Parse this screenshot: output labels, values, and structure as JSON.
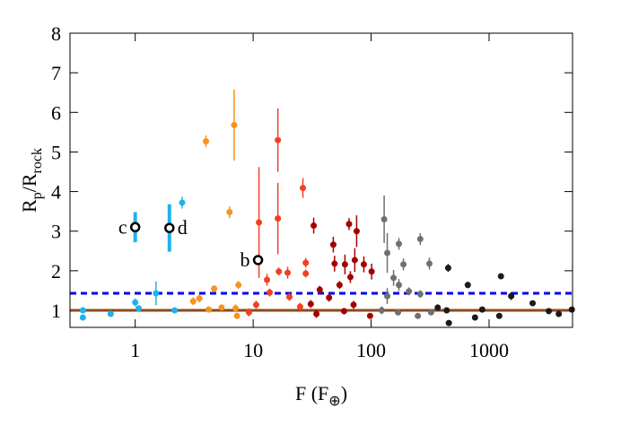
{
  "chart_data": {
    "type": "scatter",
    "x_label_parts": [
      "F (F",
      "⊕",
      ")"
    ],
    "y_label_parts": [
      "R",
      "p",
      "/R",
      "rock"
    ],
    "xscale": "log",
    "xlim": [
      0.28,
      5100
    ],
    "ylim": [
      0.57,
      8
    ],
    "xticks": [
      1,
      10,
      100,
      1000
    ],
    "yticks": [
      1,
      2,
      3,
      4,
      5,
      6,
      7,
      8
    ],
    "hlines": [
      {
        "value": 1.43,
        "color": "#0000ee",
        "style": "dashed"
      },
      {
        "value": 1.0,
        "color": "#8b4a1c",
        "style": "solid"
      }
    ],
    "series": [
      {
        "color": "#1fb2ea",
        "x": [
          0.36,
          0.36,
          0.62,
          1.0,
          1.07,
          1.5,
          2.16,
          2.5
        ],
        "values": [
          1.0,
          0.82,
          0.91,
          1.2,
          1.05,
          1.43,
          1.0,
          3.72
        ],
        "yerr": [
          0.06,
          0.05,
          0.04,
          0.1,
          0.05,
          0.3,
          0.05,
          0.15
        ]
      },
      {
        "color": "#f7941d",
        "x": [
          3.98,
          6.9,
          6.3,
          3.1,
          3.5,
          4.67,
          7.5,
          7.1,
          7.3,
          4.2,
          5.4
        ],
        "values": [
          5.27,
          5.68,
          3.48,
          1.23,
          1.3,
          1.55,
          1.64,
          1.05,
          0.86,
          1.02,
          1.07
        ],
        "yerr": [
          0.15,
          0.9,
          0.15,
          0.1,
          0.1,
          0.05,
          0.1,
          0.1,
          0.08,
          0.05,
          0.05
        ]
      },
      {
        "color": "#ef4123",
        "x": [
          16.2,
          16.2,
          26.4,
          11.2,
          13.1,
          16.5,
          19.6,
          27.9,
          27.9,
          13.8,
          20.3,
          25,
          10.6,
          9.2
        ],
        "values": [
          5.3,
          3.32,
          4.09,
          3.22,
          1.77,
          1.98,
          1.95,
          2.2,
          1.93,
          1.45,
          1.34,
          1.09,
          1.14,
          0.95
        ],
        "yerr": [
          0.8,
          0.9,
          0.25,
          1.4,
          0.15,
          0.1,
          0.15,
          0.12,
          0.1,
          0.1,
          0.1,
          0.1,
          0.1,
          0.1
        ]
      },
      {
        "color": "#a50000",
        "x": [
          32.6,
          65,
          75.4,
          47.8,
          49,
          60,
          72.7,
          86.8,
          101,
          66.7,
          54,
          36.7,
          44,
          30.8,
          71,
          98,
          34.4,
          59
        ],
        "values": [
          3.14,
          3.18,
          3.0,
          2.66,
          2.18,
          2.16,
          2.27,
          2.16,
          1.98,
          1.84,
          1.64,
          1.52,
          1.32,
          1.16,
          1.14,
          0.86,
          0.91,
          0.98
        ],
        "yerr": [
          0.2,
          0.15,
          0.4,
          0.2,
          0.2,
          0.25,
          0.3,
          0.2,
          0.2,
          0.15,
          0.1,
          0.1,
          0.1,
          0.1,
          0.1,
          0.05,
          0.1,
          0.08
        ]
      },
      {
        "color": "#707070",
        "x": [
          129,
          137,
          261,
          188,
          312,
          172,
          155,
          172,
          209,
          261,
          137,
          123,
          169,
          249,
          322
        ],
        "values": [
          3.3,
          2.45,
          2.8,
          2.16,
          2.18,
          2.68,
          1.82,
          1.64,
          1.48,
          1.41,
          1.36,
          1.0,
          0.95,
          0.86,
          0.95
        ],
        "yerr": [
          0.6,
          0.5,
          0.15,
          0.15,
          0.15,
          0.15,
          0.2,
          0.15,
          0.1,
          0.1,
          0.2,
          0.1,
          0.08,
          0.05,
          0.05
        ]
      },
      {
        "color": "#1a1a1a",
        "x": [
          450,
          660,
          1260,
          367,
          437,
          456,
          875,
          1540,
          2340,
          3210,
          3900,
          5030,
          1220,
          760
        ],
        "values": [
          2.07,
          1.64,
          1.86,
          1.07,
          1.0,
          0.68,
          1.02,
          1.36,
          1.18,
          0.98,
          0.91,
          1.02,
          0.86,
          0.82
        ],
        "yerr": [
          0.1,
          0.08,
          0.05,
          0.06,
          0.06,
          0.06,
          0.05,
          0.1,
          0.05,
          0.05,
          0.05,
          0.05,
          0.05,
          0.05
        ]
      }
    ],
    "planets": {
      "color": "#1fb2ea",
      "labels": [
        "c",
        "d",
        "b"
      ],
      "label_positions": [
        "left",
        "right",
        "left"
      ],
      "x": [
        1.0,
        1.95,
        11.0
      ],
      "values": [
        3.1,
        3.08,
        2.27
      ],
      "yerr": [
        0.38,
        0.6,
        0
      ]
    }
  }
}
